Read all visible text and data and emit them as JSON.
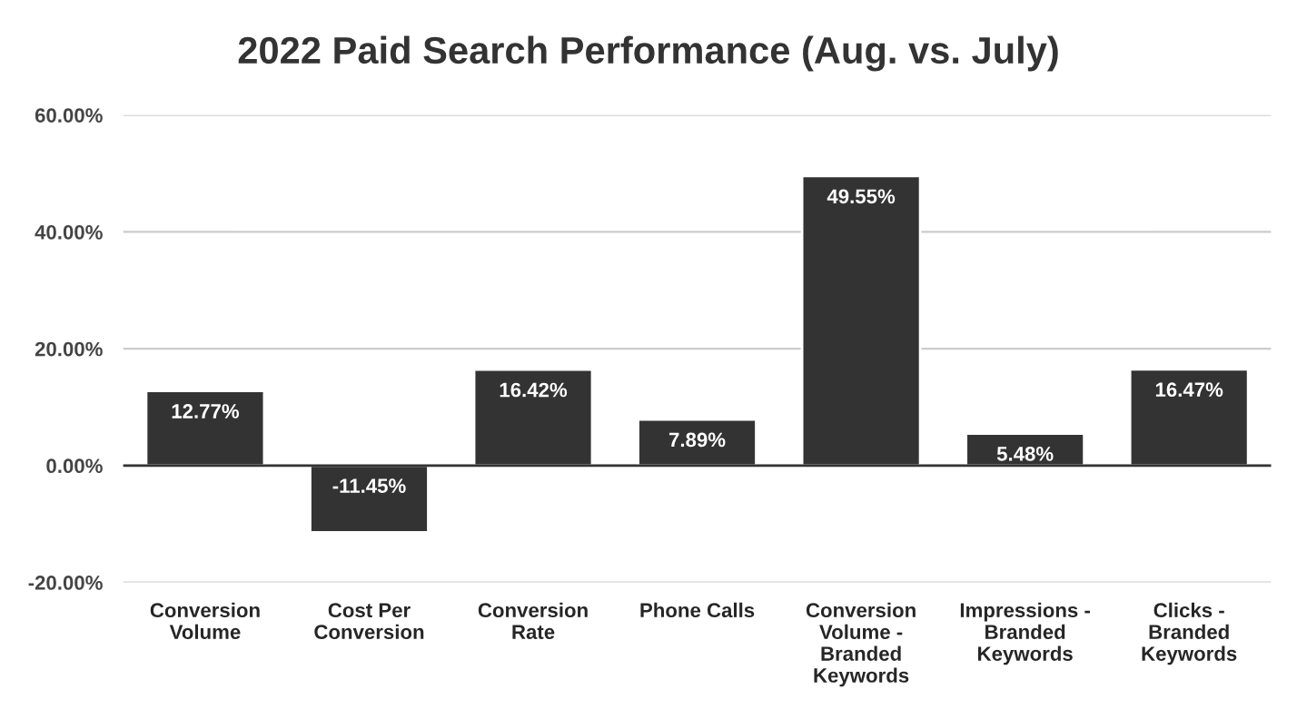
{
  "chart_data": {
    "type": "bar",
    "title": "2022 Paid Search Performance (Aug. vs. July)",
    "categories": [
      "Conversion\nVolume",
      "Cost Per\nConversion",
      "Conversion\nRate",
      "Phone Calls",
      "Conversion\nVolume -\nBranded\nKeywords",
      "Impressions -\nBranded\nKeywords",
      "Clicks -\nBranded\nKeywords"
    ],
    "values": [
      12.77,
      -11.45,
      16.42,
      7.89,
      49.55,
      5.48,
      16.47
    ],
    "value_labels": [
      "12.77%",
      "-11.45%",
      "16.42%",
      "7.89%",
      "49.55%",
      "5.48%",
      "16.47%"
    ],
    "color": "#333333",
    "ylim": [
      -20,
      60
    ],
    "yticks": [
      {
        "value": -20,
        "label": "-20.00%"
      },
      {
        "value": 0,
        "label": "0.00%"
      },
      {
        "value": 20,
        "label": "20.00%"
      },
      {
        "value": 40,
        "label": "40.00%"
      },
      {
        "value": 60,
        "label": "60.00%"
      }
    ],
    "grid": "y"
  }
}
